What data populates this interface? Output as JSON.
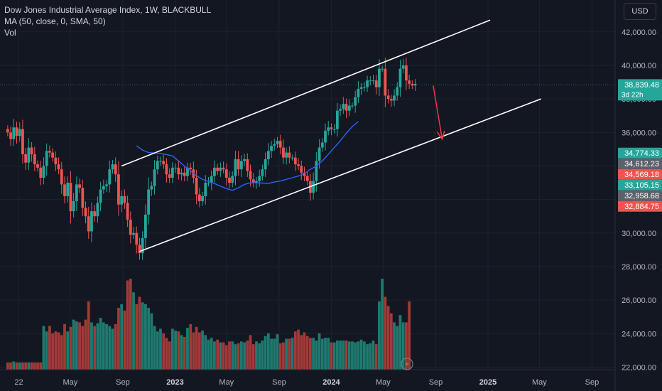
{
  "legend": {
    "symbol": "Dow Jones Industrial Average Index, 1W, BLACKBULL",
    "ma": "MA (50, close, 0, SMA, 50)",
    "vol": "Vol"
  },
  "currency": "USD",
  "colors": {
    "background": "#131722",
    "up": "#26a69a",
    "down": "#ef5350",
    "up_volume": "#1f7a70",
    "down_volume": "#a13a38",
    "ma": "#2962ff",
    "channel": "#ffffff",
    "arrow": "#f23645",
    "text": "#b2b5be",
    "grey_label": "#5d606b"
  },
  "chart_data": {
    "type": "candlestick",
    "timeframe": "1W",
    "title": "Dow Jones Industrial Average Index, 1W, BLACKBULL",
    "y_axis": {
      "ticks": [
        22000,
        24000,
        26000,
        28000,
        30000,
        32000,
        34000,
        36000,
        38000,
        40000,
        42000
      ],
      "tick_labels": [
        "22,000.00",
        "24,000.00",
        "26,000.00",
        "28,000.00",
        "30,000.00",
        "32,000.00",
        "34,000.00",
        "36,000.00",
        "38,000.00",
        "40,000.00",
        "42,000.00"
      ],
      "range": [
        21850,
        43900
      ]
    },
    "x_axis": {
      "tick_labels": [
        "22",
        "May",
        "Sep",
        "2023",
        "May",
        "Sep",
        "2024",
        "May",
        "Sep",
        "2025",
        "May",
        "Sep"
      ],
      "tick_dates": [
        "2022-01-01",
        "2022-05-01",
        "2022-09-01",
        "2023-01-01",
        "2023-05-01",
        "2023-09-01",
        "2024-01-01",
        "2024-05-01",
        "2024-09-01",
        "2025-01-01",
        "2025-05-01",
        "2025-09-01"
      ],
      "range": [
        "2021-11-18",
        "2025-10-25"
      ]
    },
    "candle_start_date": "2021-12-06",
    "closes": [
      36000,
      35600,
      36300,
      35800,
      36200,
      34700,
      34200,
      35100,
      34700,
      34100,
      33900,
      33300,
      34000,
      34900,
      34800,
      34500,
      34100,
      33800,
      32900,
      32200,
      33000,
      31300,
      31900,
      32900,
      32700,
      31500,
      31000,
      30100,
      31300,
      31000,
      31800,
      32600,
      32800,
      32900,
      33800,
      34100,
      33500,
      31700,
      32200,
      31800,
      30800,
      29900,
      30000,
      29300,
      28800,
      29700,
      31100,
      32600,
      32800,
      33800,
      34300,
      34300,
      34100,
      33500,
      33300,
      33900,
      33900,
      33500,
      33600,
      33400,
      33900,
      33800,
      33300,
      32300,
      31900,
      32200,
      33000,
      33000,
      33400,
      33900,
      33700,
      33900,
      33800,
      33300,
      33000,
      33400,
      34400,
      33800,
      34300,
      34400,
      33700,
      33200,
      33000,
      33100,
      33400,
      33800,
      34400,
      34900,
      35200,
      35300,
      35500,
      35100,
      34500,
      34800,
      34500,
      34500,
      34100,
      34000,
      33600,
      33400,
      33100,
      32400,
      33100,
      34300,
      35100,
      35400,
      36100,
      36300,
      36200,
      36200,
      37300,
      37400,
      37700,
      37300,
      37600,
      37600,
      38100,
      38600,
      38700,
      38700,
      39100,
      39100,
      39100,
      38700,
      39800,
      39800,
      38200,
      38000,
      37900,
      38200,
      38700,
      39800,
      40000,
      39100,
      38900,
      38800,
      38900
    ],
    "sma50": [
      35200,
      34950,
      34800,
      34780,
      34750,
      34680,
      34600,
      34300,
      34000,
      33700,
      33420,
      33200,
      33080,
      32950,
      32800,
      32650,
      32550,
      32700,
      32900,
      33000,
      33000,
      32980,
      32950,
      33050,
      33100,
      33200,
      33300,
      33400,
      33550,
      33800,
      34000,
      34300,
      34700,
      35100,
      35500,
      35950,
      36350,
      36650
    ],
    "sma50_start_date": "2022-10-03",
    "volume_unit": "relative",
    "volumes": [
      0.08,
      0.08,
      0.09,
      0.08,
      0.08,
      0.08,
      0.08,
      0.08,
      0.08,
      0.08,
      0.08,
      0.08,
      0.48,
      0.42,
      0.48,
      0.4,
      0.42,
      0.41,
      0.38,
      0.5,
      0.42,
      0.47,
      0.55,
      0.53,
      0.52,
      0.48,
      0.55,
      0.75,
      0.52,
      0.48,
      0.51,
      0.57,
      0.52,
      0.5,
      0.48,
      0.45,
      0.5,
      0.68,
      0.72,
      0.65,
      0.98,
      1.0,
      0.85,
      0.72,
      0.8,
      0.74,
      0.72,
      0.68,
      0.62,
      0.48,
      0.42,
      0.45,
      0.4,
      0.35,
      0.31,
      0.45,
      0.43,
      0.42,
      0.38,
      0.36,
      0.46,
      0.5,
      0.41,
      0.47,
      0.41,
      0.43,
      0.38,
      0.33,
      0.35,
      0.31,
      0.33,
      0.3,
      0.3,
      0.27,
      0.31,
      0.31,
      0.28,
      0.29,
      0.31,
      0.3,
      0.32,
      0.38,
      0.28,
      0.31,
      0.29,
      0.32,
      0.37,
      0.4,
      0.34,
      0.34,
      0.39,
      0.29,
      0.3,
      0.34,
      0.34,
      0.35,
      0.42,
      0.44,
      0.38,
      0.41,
      0.37,
      0.35,
      0.35,
      0.32,
      0.4,
      0.34,
      0.35,
      0.35,
      0.3,
      0.3,
      0.32,
      0.32,
      0.32,
      0.32,
      0.31,
      0.31,
      0.3,
      0.31,
      0.33,
      0.31,
      0.28,
      0.29,
      0.32,
      0.28,
      0.75,
      1.0,
      0.8,
      0.7,
      0.62,
      0.52,
      0.48,
      0.6,
      0.52,
      0.52,
      0.75
    ],
    "channel_upper": [
      [
        "2022-08-29",
        34000
      ],
      [
        "2025-01-06",
        42700
      ]
    ],
    "channel_lower": [
      [
        "2022-10-10",
        28900
      ],
      [
        "2025-05-05",
        38000
      ]
    ],
    "arrow": [
      [
        "2024-08-26",
        38800
      ],
      [
        "2024-09-16",
        35600
      ]
    ],
    "last_price_line": 38839.48,
    "price_labels": [
      {
        "value": 38839.48,
        "text": "38,839.48",
        "sub": "3d 22h",
        "color": "#26a69a"
      },
      {
        "value": 34774.33,
        "text": "34,774.33",
        "color": "#26a69a"
      },
      {
        "value": 34612.23,
        "text": "34,612.23",
        "color": "#5d606b"
      },
      {
        "value": 34569.18,
        "text": "34,569.18",
        "color": "#ef5350"
      },
      {
        "value": 33105.15,
        "text": "33,105.15",
        "color": "#26a69a"
      },
      {
        "value": 32958.68,
        "text": "32,958.68",
        "color": "#5d606b"
      },
      {
        "value": 32884.75,
        "text": "32,884.75",
        "color": "#ef5350"
      }
    ]
  }
}
